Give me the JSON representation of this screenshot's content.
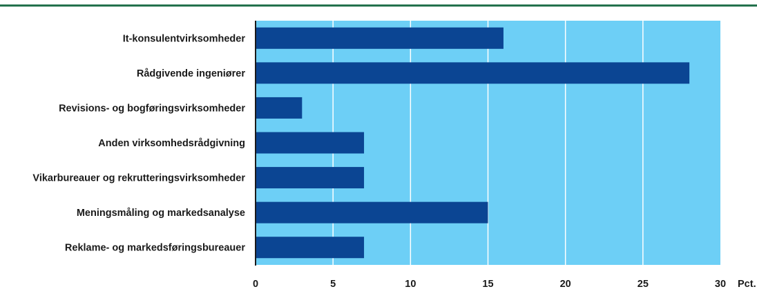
{
  "colors": {
    "top_rule": "#1a6b45",
    "plot_background": "#6dcff6",
    "bar": "#0b4593",
    "gridline": "#ffffff",
    "axis": "#1a1a1a"
  },
  "chart_data": {
    "type": "bar",
    "orientation": "horizontal",
    "categories": [
      "It-konsulentvirksomheder",
      "Rådgivende ingeniører",
      "Revisions- og bogføringsvirksomheder",
      "Anden virksomhedsrådgivning",
      "Vikarbureauer og rekrutteringsvirksomheder",
      "Meningsmåling og markedsanalyse",
      "Reklame- og markedsføringsbureauer"
    ],
    "values": [
      16,
      28,
      3,
      7,
      7,
      15,
      7
    ],
    "xlim": [
      0,
      30
    ],
    "xticks": [
      0,
      5,
      10,
      15,
      20,
      25,
      30
    ],
    "xunit": "Pct.",
    "grid": true,
    "legend": "none"
  }
}
